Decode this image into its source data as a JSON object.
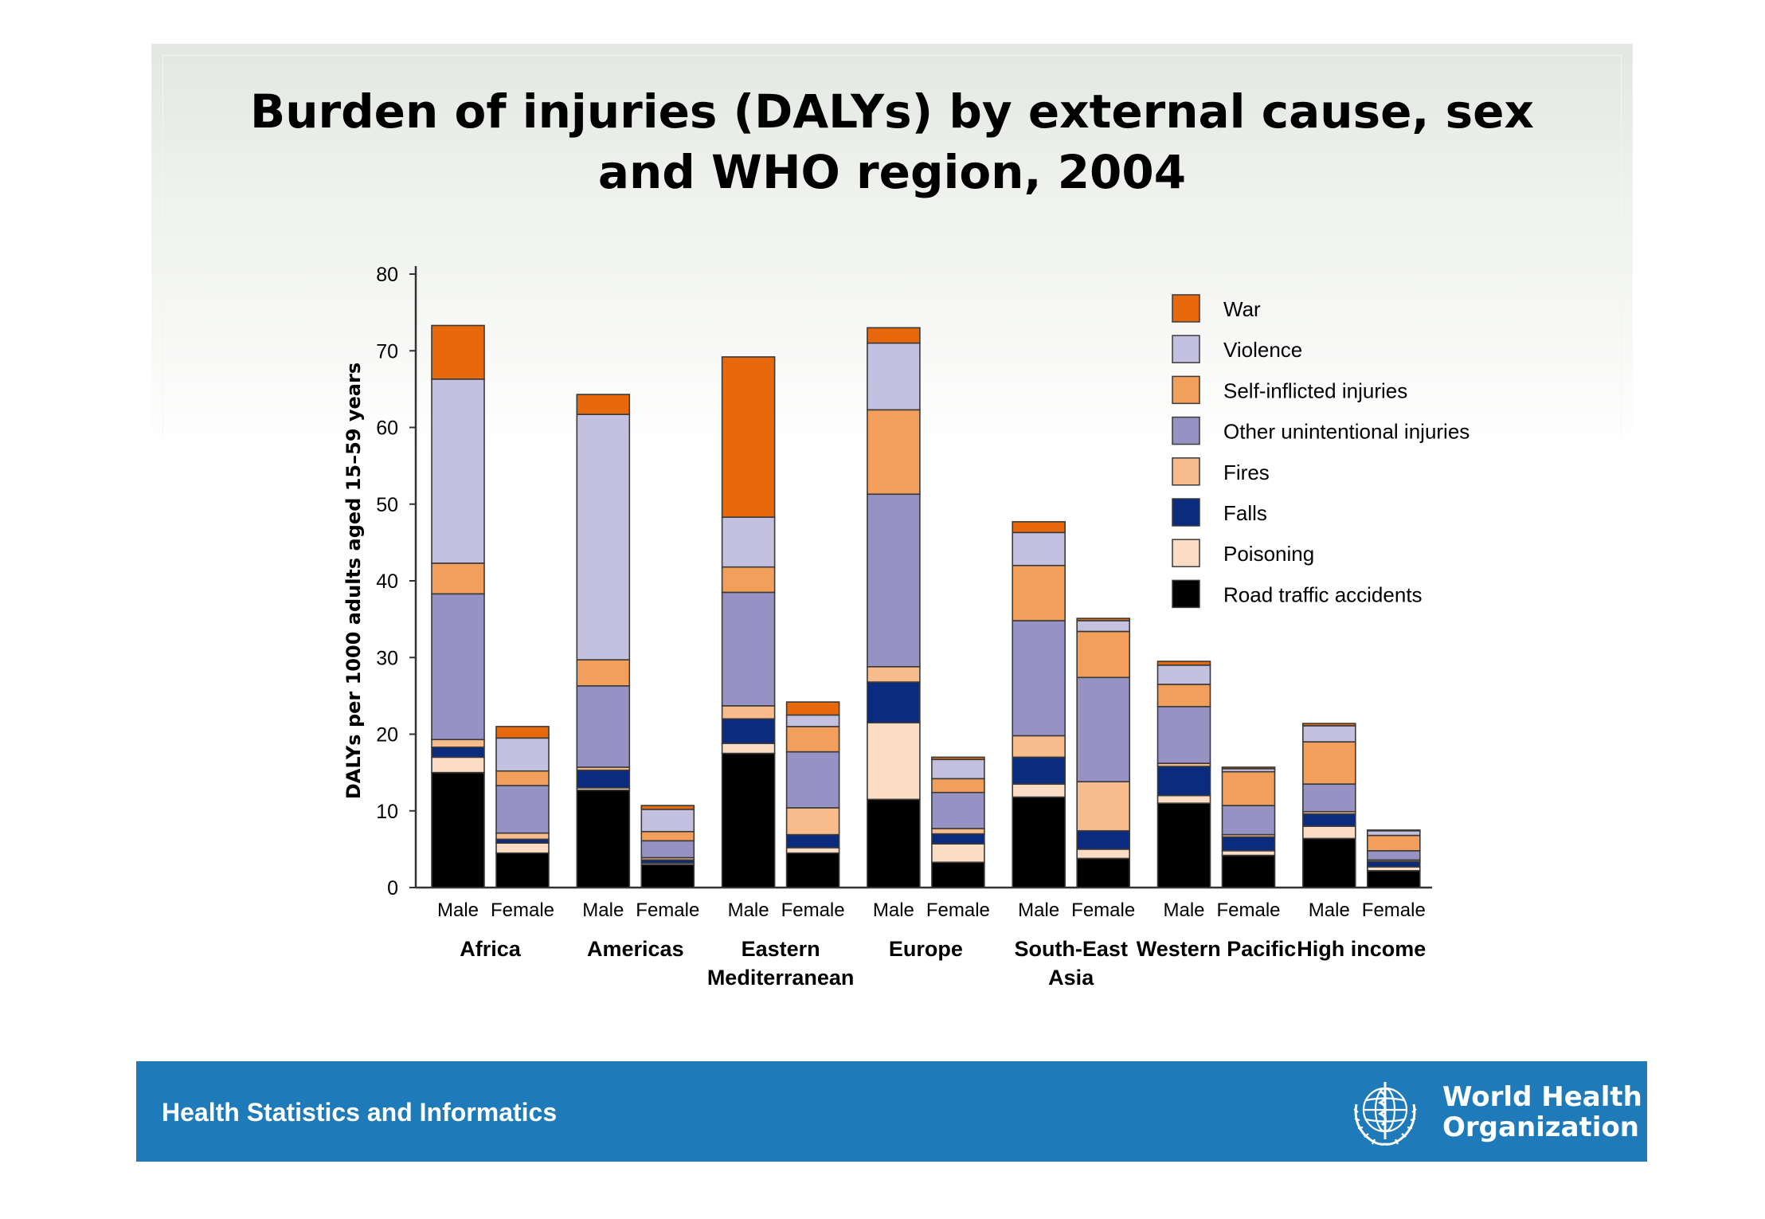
{
  "title_lines": [
    "Burden of injuries (DALYs) by external cause, sex",
    "and WHO region, 2004"
  ],
  "footer": {
    "text": "Health Statistics and Informatics",
    "org_lines": [
      "World Health",
      "Organization"
    ]
  },
  "colors": {
    "War": "#e8690b",
    "Violence": "#c4c1e0",
    "Self-inflicted injuries": "#f29f5c",
    "Other unintentional injuries": "#9693c4",
    "Fires": "#f8bb8b",
    "Falls": "#0b2c7e",
    "Poisoning": "#fbdcc4",
    "Road traffic accidents": "#000000",
    "footer_bg": "#1e7ab8"
  },
  "chart_data": {
    "type": "bar",
    "stacked": true,
    "title": "Burden of injuries (DALYs) by external cause, sex and WHO region, 2004",
    "ylabel": "DALYs per 1000 adults aged 15–59 years",
    "xlabel": "",
    "ylim": [
      0,
      80
    ],
    "yticks": [
      0,
      10,
      20,
      30,
      40,
      50,
      60,
      70,
      80
    ],
    "legend_position": "top-right",
    "stack_order": [
      "Road traffic accidents",
      "Poisoning",
      "Falls",
      "Fires",
      "Other unintentional injuries",
      "Self-inflicted injuries",
      "Violence",
      "War"
    ],
    "legend_order": [
      "War",
      "Violence",
      "Self-inflicted injuries",
      "Other unintentional injuries",
      "Fires",
      "Falls",
      "Poisoning",
      "Road traffic accidents"
    ],
    "groups": [
      {
        "name": "Africa",
        "name_lines": [
          "Africa"
        ],
        "bars": [
          {
            "label": "Male",
            "values": {
              "Road traffic accidents": 15,
              "Poisoning": 2,
              "Falls": 1.3,
              "Fires": 1,
              "Other unintentional injuries": 19,
              "Self-inflicted injuries": 4,
              "Violence": 24,
              "War": 7
            }
          },
          {
            "label": "Female",
            "values": {
              "Road traffic accidents": 4.5,
              "Poisoning": 1.3,
              "Falls": 0.5,
              "Fires": 0.8,
              "Other unintentional injuries": 6.2,
              "Self-inflicted injuries": 1.9,
              "Violence": 4.3,
              "War": 1.5
            }
          }
        ]
      },
      {
        "name": "Americas",
        "name_lines": [
          "Americas"
        ],
        "bars": [
          {
            "label": "Male",
            "values": {
              "Road traffic accidents": 12.7,
              "Poisoning": 0.3,
              "Falls": 2.3,
              "Fires": 0.4,
              "Other unintentional injuries": 10.6,
              "Self-inflicted injuries": 3.4,
              "Violence": 32,
              "War": 2.6
            }
          },
          {
            "label": "Female",
            "values": {
              "Road traffic accidents": 3,
              "Poisoning": 0.2,
              "Falls": 0.4,
              "Fires": 0.3,
              "Other unintentional injuries": 2.2,
              "Self-inflicted injuries": 1.2,
              "Violence": 2.9,
              "War": 0.5
            }
          }
        ]
      },
      {
        "name": "Eastern Mediterranean",
        "name_lines": [
          "Eastern",
          "Mediterranean"
        ],
        "bars": [
          {
            "label": "Male",
            "values": {
              "Road traffic accidents": 17.5,
              "Poisoning": 1.3,
              "Falls": 3.2,
              "Fires": 1.7,
              "Other unintentional injuries": 14.8,
              "Self-inflicted injuries": 3.3,
              "Violence": 6.5,
              "War": 20.9
            }
          },
          {
            "label": "Female",
            "values": {
              "Road traffic accidents": 4.5,
              "Poisoning": 0.7,
              "Falls": 1.7,
              "Fires": 3.5,
              "Other unintentional injuries": 7.3,
              "Self-inflicted injuries": 3.3,
              "Violence": 1.5,
              "War": 1.7
            }
          }
        ]
      },
      {
        "name": "Europe",
        "name_lines": [
          "Europe"
        ],
        "bars": [
          {
            "label": "Male",
            "values": {
              "Road traffic accidents": 11.5,
              "Poisoning": 10,
              "Falls": 5.3,
              "Fires": 2,
              "Other unintentional injuries": 22.5,
              "Self-inflicted injuries": 11,
              "Violence": 8.7,
              "War": 2
            }
          },
          {
            "label": "Female",
            "values": {
              "Road traffic accidents": 3.3,
              "Poisoning": 2.4,
              "Falls": 1.3,
              "Fires": 0.7,
              "Other unintentional injuries": 4.7,
              "Self-inflicted injuries": 1.8,
              "Violence": 2.5,
              "War": 0.3
            }
          }
        ]
      },
      {
        "name": "South-East Asia",
        "name_lines": [
          "South-East",
          "Asia"
        ],
        "bars": [
          {
            "label": "Male",
            "values": {
              "Road traffic accidents": 11.8,
              "Poisoning": 1.7,
              "Falls": 3.5,
              "Fires": 2.8,
              "Other unintentional injuries": 15,
              "Self-inflicted injuries": 7.2,
              "Violence": 4.3,
              "War": 1.4
            }
          },
          {
            "label": "Female",
            "values": {
              "Road traffic accidents": 3.8,
              "Poisoning": 1.2,
              "Falls": 2.4,
              "Fires": 6.4,
              "Other unintentional injuries": 13.6,
              "Self-inflicted injuries": 6,
              "Violence": 1.4,
              "War": 0.3
            }
          }
        ]
      },
      {
        "name": "Western Pacific",
        "name_lines": [
          "Western Pacific"
        ],
        "bars": [
          {
            "label": "Male",
            "values": {
              "Road traffic accidents": 11,
              "Poisoning": 1,
              "Falls": 3.8,
              "Fires": 0.4,
              "Other unintentional injuries": 7.4,
              "Self-inflicted injuries": 2.9,
              "Violence": 2.5,
              "War": 0.5
            }
          },
          {
            "label": "Female",
            "values": {
              "Road traffic accidents": 4.2,
              "Poisoning": 0.6,
              "Falls": 1.8,
              "Fires": 0.3,
              "Other unintentional injuries": 3.8,
              "Self-inflicted injuries": 4.4,
              "Violence": 0.4,
              "War": 0.2
            }
          }
        ]
      },
      {
        "name": "High income",
        "name_lines": [
          "High income"
        ],
        "bars": [
          {
            "label": "Male",
            "values": {
              "Road traffic accidents": 6.4,
              "Poisoning": 1.6,
              "Falls": 1.6,
              "Fires": 0.3,
              "Other unintentional injuries": 3.6,
              "Self-inflicted injuries": 5.5,
              "Violence": 2.1,
              "War": 0.3
            }
          },
          {
            "label": "Female",
            "values": {
              "Road traffic accidents": 2.2,
              "Poisoning": 0.5,
              "Falls": 0.7,
              "Fires": 0.2,
              "Other unintentional injuries": 1.2,
              "Self-inflicted injuries": 2,
              "Violence": 0.6,
              "War": 0.1
            }
          }
        ]
      }
    ]
  }
}
